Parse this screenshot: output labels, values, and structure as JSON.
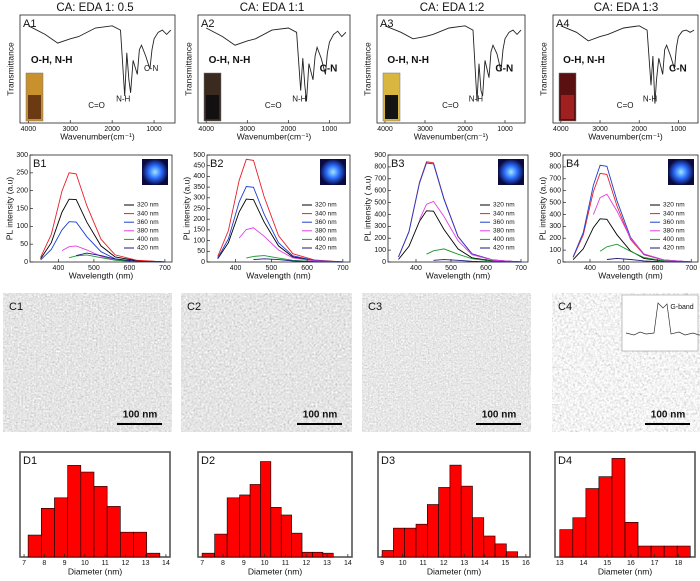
{
  "figure": {
    "column_titles": [
      "CA: EDA 1: 0.5",
      "CA: EDA 1:1",
      "CA: EDA 1:2",
      "CA: EDA 1:3"
    ]
  },
  "chart_data": [
    {
      "type": "line",
      "label": "A1",
      "x": [
        4000,
        3600,
        3300,
        3000,
        2800,
        2400,
        2000,
        1800,
        1700,
        1650,
        1600,
        1560,
        1500,
        1400,
        1350,
        1300,
        1200,
        1100,
        1050,
        1000,
        900,
        800,
        700,
        600
      ],
      "series": [
        {
          "color": "#222222",
          "values": [
            90,
            82,
            74,
            78,
            80,
            88,
            90,
            86,
            25,
            65,
            40,
            28,
            58,
            45,
            68,
            72,
            62,
            50,
            68,
            78,
            84,
            86,
            82,
            86
          ]
        }
      ],
      "xlim": [
        4200,
        500
      ],
      "xticks": [
        4000,
        3000,
        2000,
        1000
      ],
      "ylim": [
        0,
        100
      ],
      "xlabel": "Wavenumber(cm⁻¹)",
      "ylabel": "Transmittance",
      "annotations": [
        "O-H, N-H",
        "C=O",
        "N-H",
        "C-N"
      ]
    },
    {
      "type": "line",
      "label": "A2",
      "x": [
        4000,
        3600,
        3300,
        3000,
        2800,
        2400,
        2000,
        1800,
        1700,
        1650,
        1600,
        1560,
        1500,
        1400,
        1350,
        1300,
        1200,
        1100,
        1050,
        1000,
        900,
        800,
        700,
        600
      ],
      "series": [
        {
          "color": "#222222",
          "values": [
            88,
            80,
            72,
            76,
            78,
            86,
            88,
            84,
            30,
            60,
            35,
            20,
            55,
            40,
            62,
            70,
            60,
            45,
            65,
            75,
            82,
            85,
            80,
            84
          ]
        }
      ],
      "xlim": [
        4200,
        500
      ],
      "xticks": [
        4000,
        3000,
        2000,
        1000
      ],
      "ylim": [
        0,
        100
      ],
      "xlabel": "Wavenumber(cm⁻¹)",
      "ylabel": "Transmittance",
      "annotations": [
        "O-H, N-H",
        "C=O",
        "N-H",
        "C-N"
      ]
    },
    {
      "type": "line",
      "label": "A3",
      "x": [
        4000,
        3600,
        3300,
        3000,
        2800,
        2400,
        2000,
        1800,
        1700,
        1650,
        1600,
        1560,
        1500,
        1400,
        1350,
        1300,
        1200,
        1100,
        1050,
        1000,
        900,
        800,
        700,
        600
      ],
      "series": [
        {
          "color": "#222222",
          "values": [
            90,
            84,
            78,
            80,
            82,
            88,
            90,
            86,
            20,
            55,
            30,
            25,
            58,
            42,
            66,
            72,
            64,
            48,
            68,
            78,
            84,
            86,
            82,
            86
          ]
        }
      ],
      "xlim": [
        4200,
        500
      ],
      "xticks": [
        4000,
        3000,
        2000,
        1000
      ],
      "ylim": [
        0,
        100
      ],
      "xlabel": "Wavenumber(cm⁻¹)",
      "ylabel": "Transmittance",
      "annotations": [
        "O-H, N-H",
        "C=O",
        "N-H",
        "C-N"
      ]
    },
    {
      "type": "line",
      "label": "A4",
      "x": [
        4000,
        3600,
        3300,
        3000,
        2800,
        2400,
        2000,
        1800,
        1700,
        1650,
        1600,
        1560,
        1500,
        1400,
        1350,
        1300,
        1200,
        1100,
        1050,
        1000,
        900,
        800,
        700,
        600
      ],
      "series": [
        {
          "color": "#222222",
          "values": [
            90,
            84,
            76,
            80,
            82,
            88,
            90,
            86,
            35,
            62,
            18,
            40,
            60,
            45,
            68,
            72,
            62,
            50,
            70,
            80,
            85,
            86,
            84,
            86
          ]
        }
      ],
      "xlim": [
        4200,
        500
      ],
      "xticks": [
        4000,
        3000,
        2000,
        1000
      ],
      "ylim": [
        0,
        100
      ],
      "xlabel": "Wavenumber(cm⁻¹)",
      "ylabel": "Transmittance",
      "annotations": [
        "O-H, N-H",
        "C=O",
        "N-H",
        "C-N"
      ]
    },
    {
      "type": "line",
      "label": "B1",
      "x": [
        350,
        380,
        410,
        430,
        450,
        480,
        520,
        560,
        620,
        700
      ],
      "legend": "right",
      "series": [
        {
          "name": "320 nm",
          "color": "#000000",
          "values": [
            9,
            54,
            140,
            176,
            175,
            112,
            45,
            14,
            4,
            0
          ]
        },
        {
          "name": "340 nm",
          "color": "#e8202a",
          "values": [
            13,
            77,
            199,
            250,
            247,
            158,
            64,
            20,
            5,
            0
          ]
        },
        {
          "name": "360 nm",
          "color": "#1f3fcf",
          "values": [
            6,
            35,
            90,
            113,
            112,
            71,
            29,
            9,
            2,
            0
          ]
        },
        {
          "name": "380 nm",
          "color": "#e040e0",
          "values": [
            null,
            null,
            32,
            43,
            45,
            34,
            16,
            5,
            1,
            0
          ]
        },
        {
          "name": "400 nm",
          "color": "#1a9a30",
          "values": [
            null,
            null,
            null,
            12,
            17,
            20,
            12,
            5,
            1,
            0
          ]
        },
        {
          "name": "420 nm",
          "color": "#1a1a80",
          "values": [
            null,
            null,
            null,
            null,
            18,
            25,
            18,
            8,
            2,
            0
          ]
        }
      ],
      "xlim": [
        320,
        720
      ],
      "xticks": [
        400,
        500,
        600,
        700
      ],
      "ylim": [
        0,
        300
      ],
      "yticks": [
        0,
        50,
        100,
        150,
        200,
        250,
        300
      ],
      "xlabel": "Wavelength (nm)",
      "ylabel": "PL intensity (a.u)"
    },
    {
      "type": "line",
      "label": "B2",
      "x": [
        350,
        380,
        410,
        430,
        450,
        480,
        520,
        560,
        620,
        700
      ],
      "legend": "right",
      "series": [
        {
          "name": "320 nm",
          "color": "#000000",
          "values": [
            15,
            90,
            234,
            294,
            291,
            186,
            75,
            24,
            6,
            0
          ]
        },
        {
          "name": "340 nm",
          "color": "#e8202a",
          "values": [
            25,
            147,
            382,
            480,
            475,
            304,
            123,
            39,
            10,
            0
          ]
        },
        {
          "name": "360 nm",
          "color": "#1f3fcf",
          "values": [
            18,
            108,
            281,
            353,
            349,
            223,
            90,
            29,
            7,
            0
          ]
        },
        {
          "name": "380 nm",
          "color": "#e040e0",
          "values": [
            null,
            null,
            112,
            152,
            160,
            120,
            56,
            19,
            5,
            0
          ]
        },
        {
          "name": "400 nm",
          "color": "#1a9a30",
          "values": [
            null,
            null,
            null,
            18,
            26,
            30,
            18,
            8,
            2,
            0
          ]
        },
        {
          "name": "420 nm",
          "color": "#1a1a80",
          "values": [
            null,
            null,
            null,
            null,
            11,
            15,
            11,
            5,
            1,
            0
          ]
        }
      ],
      "xlim": [
        320,
        720
      ],
      "xticks": [
        400,
        500,
        600,
        700
      ],
      "ylim": [
        0,
        500
      ],
      "yticks": [
        0,
        50,
        100,
        150,
        200,
        250,
        300,
        350,
        400,
        450,
        500
      ],
      "xlabel": "Wavelength (nm)",
      "ylabel": "PL intensity (a.u)"
    },
    {
      "type": "line",
      "label": "B3",
      "x": [
        350,
        380,
        410,
        430,
        450,
        480,
        520,
        560,
        620,
        700
      ],
      "legend": "right",
      "series": [
        {
          "name": "320 nm",
          "color": "#000000",
          "values": [
            22,
            132,
            343,
            431,
            427,
            273,
            110,
            35,
            9,
            0
          ]
        },
        {
          "name": "340 nm",
          "color": "#e8202a",
          "values": [
            43,
            258,
            671,
            843,
            834,
            533,
            215,
            69,
            17,
            0
          ]
        },
        {
          "name": "360 nm",
          "color": "#1f3fcf",
          "values": [
            43,
            255,
            663,
            833,
            825,
            527,
            213,
            68,
            17,
            0
          ]
        },
        {
          "name": "380 nm",
          "color": "#e040e0",
          "values": [
            null,
            null,
            357,
            485,
            510,
            383,
            179,
            61,
            15,
            0
          ]
        },
        {
          "name": "400 nm",
          "color": "#1a9a30",
          "values": [
            null,
            null,
            null,
            66,
            94,
            110,
            66,
            28,
            6,
            0
          ]
        },
        {
          "name": "420 nm",
          "color": "#1a1a80",
          "values": [
            null,
            null,
            null,
            null,
            14,
            20,
            14,
            6,
            1,
            0
          ]
        }
      ],
      "xlim": [
        320,
        720
      ],
      "xticks": [
        400,
        500,
        600,
        700
      ],
      "ylim": [
        0,
        900
      ],
      "yticks": [
        0,
        100,
        200,
        300,
        400,
        500,
        600,
        700,
        800,
        900
      ],
      "xlabel": "Wavelength (nm)",
      "ylabel": "PL intensity ( a.u)"
    },
    {
      "type": "line",
      "label": "B4",
      "x": [
        350,
        380,
        410,
        430,
        450,
        480,
        520,
        560,
        620,
        700
      ],
      "legend": "right",
      "series": [
        {
          "name": "320 nm",
          "color": "#000000",
          "values": [
            19,
            111,
            289,
            363,
            359,
            229,
            93,
            30,
            7,
            0
          ]
        },
        {
          "name": "340 nm",
          "color": "#e8202a",
          "values": [
            38,
            228,
            593,
            745,
            737,
            471,
            190,
            61,
            15,
            0
          ]
        },
        {
          "name": "360 nm",
          "color": "#1f3fcf",
          "values": [
            42,
            249,
            647,
            813,
            805,
            515,
            208,
            66,
            17,
            0
          ]
        },
        {
          "name": "380 nm",
          "color": "#e040e0",
          "values": [
            null,
            null,
            399,
            542,
            570,
            428,
            200,
            68,
            17,
            0
          ]
        },
        {
          "name": "400 nm",
          "color": "#1a9a30",
          "values": [
            null,
            null,
            null,
            90,
            128,
            150,
            90,
            38,
            8,
            0
          ]
        },
        {
          "name": "420 nm",
          "color": "#1a1a80",
          "values": [
            null,
            null,
            null,
            null,
            21,
            30,
            21,
            9,
            2,
            0
          ]
        }
      ],
      "xlim": [
        320,
        720
      ],
      "xticks": [
        400,
        500,
        600,
        700
      ],
      "ylim": [
        0,
        900
      ],
      "yticks": [
        0,
        100,
        200,
        300,
        400,
        500,
        600,
        700,
        800,
        900
      ],
      "xlabel": "Wavelength (nm)",
      "ylabel": "PL intensity (a.u)"
    },
    {
      "type": "histogram",
      "label": "D1",
      "bins": [
        7.2,
        7.85,
        8.5,
        9.15,
        9.8,
        10.45,
        11.1,
        11.75,
        12.4,
        13.05,
        13.7
      ],
      "values": [
        2.3,
        5.1,
        6.2,
        9.6,
        8.9,
        7.4,
        5.3,
        2.6,
        2.6,
        0.4
      ],
      "color": "#ff0000",
      "xlim": [
        6.8,
        14.2
      ],
      "xticks": [
        7,
        8,
        9,
        10,
        11,
        12,
        13,
        14
      ],
      "ylim": [
        0,
        11
      ],
      "xlabel": "Diameter (nm)"
    },
    {
      "type": "histogram",
      "label": "D2",
      "bins": [
        7.0,
        7.6,
        8.2,
        8.8,
        9.3,
        9.8,
        10.3,
        10.8,
        11.3,
        11.8,
        12.3,
        12.8,
        13.3
      ],
      "values": [
        0.4,
        2.4,
        6.2,
        6.5,
        7.6,
        10,
        5.2,
        4.4,
        2.5,
        0.5,
        0.5,
        0.4
      ],
      "color": "#ff0000",
      "xlim": [
        6.8,
        14.2
      ],
      "xticks": [
        7,
        8,
        9,
        10,
        11,
        12,
        13,
        14
      ],
      "ylim": [
        0,
        11
      ],
      "xlabel": "Diameter (nm)"
    },
    {
      "type": "histogram",
      "label": "D3",
      "bins": [
        9.0,
        9.55,
        10.1,
        10.65,
        11.2,
        11.75,
        12.3,
        12.85,
        13.4,
        13.95,
        14.5,
        15.05,
        15.6
      ],
      "values": [
        0.5,
        2.2,
        2.2,
        2.5,
        4,
        5.3,
        7,
        5.4,
        3,
        1.6,
        1,
        0.4
      ],
      "color": "#ff0000",
      "xlim": [
        8.8,
        16.2
      ],
      "xticks": [
        9,
        10,
        11,
        12,
        13,
        14,
        15,
        16
      ],
      "ylim": [
        0,
        8
      ],
      "xlabel": "Diameter (nm)"
    },
    {
      "type": "histogram",
      "label": "D4",
      "bins": [
        13.0,
        13.55,
        14.1,
        14.65,
        15.2,
        15.75,
        16.3,
        16.85,
        17.4,
        17.95,
        18.5
      ],
      "values": [
        3.0,
        4.3,
        7.5,
        8.8,
        10.8,
        3.8,
        1.2,
        1.2,
        1.2,
        1.2
      ],
      "color": "#ff0000",
      "xlim": [
        12.8,
        18.7
      ],
      "xticks": [
        13,
        14,
        15,
        16,
        17,
        18
      ],
      "ylim": [
        0,
        11.5
      ],
      "xlabel": "Diameter (nm)"
    }
  ],
  "images": [
    {
      "label": "C1",
      "scale_bar": "100 nm"
    },
    {
      "label": "C2",
      "scale_bar": "100 nm"
    },
    {
      "label": "C3",
      "scale_bar": "100 nm"
    },
    {
      "label": "C4",
      "scale_bar": "100 nm",
      "inset": "G-band"
    }
  ]
}
